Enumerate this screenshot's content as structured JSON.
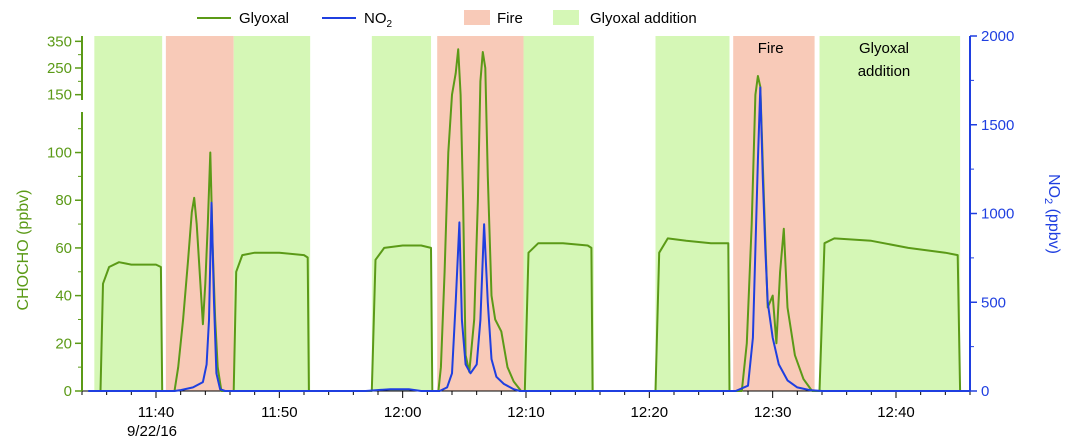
{
  "chart_data": {
    "type": "line",
    "legend": {
      "placement": "top",
      "items": [
        {
          "label": "Glyoxal",
          "symbol": "line",
          "color": "#5b9a17"
        },
        {
          "label": "NO",
          "label_sub": "2",
          "symbol": "line",
          "color": "#1f3fe0"
        },
        {
          "label": "Fire",
          "symbol": "box",
          "color": "#f8cab8"
        },
        {
          "label": "Glyoxal addition",
          "symbol": "box",
          "color": "#d5f7b6"
        }
      ]
    },
    "x_axis": {
      "unit": "time of day (HH:MM)",
      "range": [
        "11:34",
        "12:46"
      ],
      "ticks": [
        "11:40",
        "11:50",
        "12:00",
        "12:10",
        "12:20",
        "12:30",
        "12:40"
      ],
      "date_label": "9/22/16"
    },
    "y_left": {
      "label": "CHOCHO (ppbv)",
      "color": "#5b9a17",
      "lower_segment": {
        "range": [
          0,
          117
        ],
        "ticks": [
          0,
          20,
          40,
          60,
          80,
          100
        ]
      },
      "upper_segment": {
        "range": [
          130,
          370
        ],
        "ticks": [
          150,
          250,
          350
        ]
      }
    },
    "y_right": {
      "label": "NO",
      "label_sub": "2",
      "label_suffix": " (ppbv)",
      "color": "#1f3fe0",
      "range": [
        0,
        2000
      ],
      "ticks": [
        0,
        500,
        1000,
        1500,
        2000
      ]
    },
    "annotations": [
      {
        "text": "Fire",
        "at": "12:30"
      },
      {
        "text": "Glyoxal",
        "text_line2": "addition",
        "at": "12:40"
      }
    ],
    "shaded_periods": [
      {
        "kind": "Glyoxal addition",
        "start": "11:35",
        "end": "11:40.5"
      },
      {
        "kind": "Fire",
        "start": "11:40.8",
        "end": "11:46.3"
      },
      {
        "kind": "Glyoxal addition",
        "start": "11:46.3",
        "end": "11:52.5"
      },
      {
        "kind": "Glyoxal addition",
        "start": "11:57.5",
        "end": "12:02.3"
      },
      {
        "kind": "Fire",
        "start": "12:02.8",
        "end": "12:09.8"
      },
      {
        "kind": "Glyoxal addition",
        "start": "12:09.8",
        "end": "12:15.5"
      },
      {
        "kind": "Glyoxal addition",
        "start": "12:20.5",
        "end": "12:26.5"
      },
      {
        "kind": "Fire",
        "start": "12:26.8",
        "end": "12:33.4"
      },
      {
        "kind": "Glyoxal addition",
        "start": "12:33.8",
        "end": "12:45.2"
      }
    ],
    "series": [
      {
        "name": "Glyoxal",
        "axis": "left",
        "color": "#5b9a17",
        "points": [
          [
            "11:35.0",
            0
          ],
          [
            "11:35.5",
            0
          ],
          [
            "11:35.7",
            45
          ],
          [
            "11:36.2",
            52
          ],
          [
            "11:37.0",
            54
          ],
          [
            "11:38.0",
            53
          ],
          [
            "11:39.0",
            53
          ],
          [
            "11:40.0",
            53
          ],
          [
            "11:40.4",
            52
          ],
          [
            "11:40.5",
            0
          ],
          [
            "11:41.5",
            0
          ],
          [
            "11:41.8",
            10
          ],
          [
            "11:42.2",
            30
          ],
          [
            "11:42.6",
            55
          ],
          [
            "11:42.9",
            75
          ],
          [
            "11:43.1",
            81
          ],
          [
            "11:43.3",
            70
          ],
          [
            "11:43.6",
            45
          ],
          [
            "11:43.8",
            28
          ],
          [
            "11:44.0",
            45
          ],
          [
            "11:44.2",
            70
          ],
          [
            "11:44.4",
            100
          ],
          [
            "11:44.6",
            60
          ],
          [
            "11:44.8",
            30
          ],
          [
            "11:45.0",
            10
          ],
          [
            "11:45.3",
            0
          ],
          [
            "11:46.3",
            0
          ],
          [
            "11:46.5",
            50
          ],
          [
            "11:47.0",
            57
          ],
          [
            "11:48.0",
            58
          ],
          [
            "11:50.0",
            58
          ],
          [
            "11:52.0",
            57
          ],
          [
            "11:52.3",
            56
          ],
          [
            "11:52.4",
            0
          ],
          [
            "11:57.5",
            0
          ],
          [
            "11:57.8",
            55
          ],
          [
            "11:58.5",
            60
          ],
          [
            "12:00.0",
            61
          ],
          [
            "12:01.5",
            61
          ],
          [
            "12:02.3",
            60
          ],
          [
            "12:02.4",
            0
          ],
          [
            "12:02.9",
            0
          ],
          [
            "12:03.1",
            10
          ],
          [
            "12:03.4",
            50
          ],
          [
            "12:03.7",
            100
          ],
          [
            "12:04.0",
            150
          ],
          [
            "12:04.3",
            230
          ],
          [
            "12:04.5",
            320
          ],
          [
            "12:04.7",
            150
          ],
          [
            "12:04.9",
            80
          ],
          [
            "12:05.1",
            15
          ],
          [
            "12:05.4",
            8
          ],
          [
            "12:05.8",
            30
          ],
          [
            "12:06.1",
            80
          ],
          [
            "12:06.3",
            200
          ],
          [
            "12:06.5",
            310
          ],
          [
            "12:06.7",
            250
          ],
          [
            "12:06.9",
            90
          ],
          [
            "12:07.2",
            40
          ],
          [
            "12:07.5",
            30
          ],
          [
            "12:08.0",
            25
          ],
          [
            "12:08.5",
            10
          ],
          [
            "12:09.0",
            4
          ],
          [
            "12:09.6",
            0
          ],
          [
            "12:09.9",
            0
          ],
          [
            "12:10.2",
            58
          ],
          [
            "12:11.0",
            62
          ],
          [
            "12:13.0",
            62
          ],
          [
            "12:15.0",
            61
          ],
          [
            "12:15.3",
            60
          ],
          [
            "12:15.4",
            0
          ],
          [
            "12:20.5",
            0
          ],
          [
            "12:20.8",
            58
          ],
          [
            "12:21.5",
            64
          ],
          [
            "12:23.0",
            63
          ],
          [
            "12:25.0",
            62
          ],
          [
            "12:26.4",
            62
          ],
          [
            "12:26.5",
            0
          ],
          [
            "12:27.5",
            0
          ],
          [
            "12:27.9",
            20
          ],
          [
            "12:28.3",
            70
          ],
          [
            "12:28.6",
            150
          ],
          [
            "12:28.8",
            220
          ],
          [
            "12:29.0",
            180
          ],
          [
            "12:29.3",
            80
          ],
          [
            "12:29.6",
            35
          ],
          [
            "12:30.0",
            40
          ],
          [
            "12:30.3",
            20
          ],
          [
            "12:30.6",
            50
          ],
          [
            "12:30.9",
            68
          ],
          [
            "12:31.2",
            35
          ],
          [
            "12:31.8",
            15
          ],
          [
            "12:32.5",
            5
          ],
          [
            "12:33.2",
            0
          ],
          [
            "12:33.8",
            0
          ],
          [
            "12:34.2",
            62
          ],
          [
            "12:35.0",
            64
          ],
          [
            "12:38.0",
            63
          ],
          [
            "12:41.0",
            60
          ],
          [
            "12:44.0",
            58
          ],
          [
            "12:45.0",
            57
          ],
          [
            "12:45.2",
            0
          ],
          [
            "12:46.0",
            0
          ]
        ]
      },
      {
        "name": "NO2",
        "axis": "right",
        "color": "#1f3fe0",
        "points": [
          [
            "11:34.5",
            0
          ],
          [
            "11:41.5",
            0
          ],
          [
            "11:42.0",
            5
          ],
          [
            "11:43.0",
            20
          ],
          [
            "11:43.8",
            50
          ],
          [
            "11:44.1",
            150
          ],
          [
            "11:44.3",
            400
          ],
          [
            "11:44.5",
            1060
          ],
          [
            "11:44.7",
            500
          ],
          [
            "11:44.9",
            100
          ],
          [
            "11:45.2",
            10
          ],
          [
            "11:45.6",
            0
          ],
          [
            "11:57.0",
            0
          ],
          [
            "11:59.0",
            10
          ],
          [
            "12:00.5",
            10
          ],
          [
            "12:01.5",
            0
          ],
          [
            "12:03.0",
            0
          ],
          [
            "12:03.6",
            20
          ],
          [
            "12:04.0",
            100
          ],
          [
            "12:04.3",
            500
          ],
          [
            "12:04.6",
            950
          ],
          [
            "12:04.8",
            400
          ],
          [
            "12:05.1",
            150
          ],
          [
            "12:05.5",
            100
          ],
          [
            "12:06.0",
            150
          ],
          [
            "12:06.3",
            400
          ],
          [
            "12:06.6",
            940
          ],
          [
            "12:06.9",
            500
          ],
          [
            "12:07.2",
            180
          ],
          [
            "12:07.6",
            80
          ],
          [
            "12:08.2",
            40
          ],
          [
            "12:09.0",
            10
          ],
          [
            "12:09.5",
            0
          ],
          [
            "12:27.0",
            0
          ],
          [
            "12:28.0",
            30
          ],
          [
            "12:28.4",
            300
          ],
          [
            "12:28.8",
            1300
          ],
          [
            "12:29.0",
            1710
          ],
          [
            "12:29.2",
            1200
          ],
          [
            "12:29.4",
            800
          ],
          [
            "12:29.6",
            500
          ],
          [
            "12:30.0",
            300
          ],
          [
            "12:30.5",
            150
          ],
          [
            "12:31.2",
            60
          ],
          [
            "12:32.0",
            20
          ],
          [
            "12:33.0",
            5
          ],
          [
            "12:34.0",
            0
          ],
          [
            "12:46.0",
            0
          ]
        ]
      }
    ]
  }
}
